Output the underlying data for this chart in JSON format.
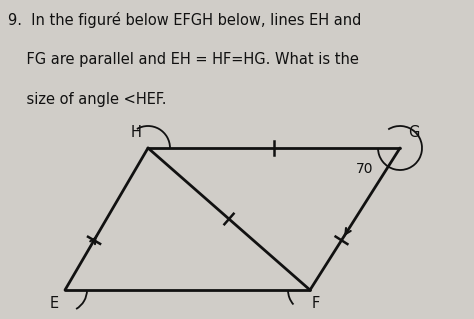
{
  "bg_color": "#d0cdc8",
  "fig_width": 4.74,
  "fig_height": 3.19,
  "dpi": 100,
  "line_color": "#111111",
  "text_color": "#111111",
  "line_width": 2.0,
  "label_E": "E",
  "label_H": "H",
  "label_G": "G",
  "label_F": "F",
  "angle_label": "70",
  "text_line1": "9.  In the figuré below EFGH below, lines EH and",
  "text_line2": "    FG are parallel and EH = HF=HG. What is the",
  "text_line3": "    size of angle <HEF."
}
